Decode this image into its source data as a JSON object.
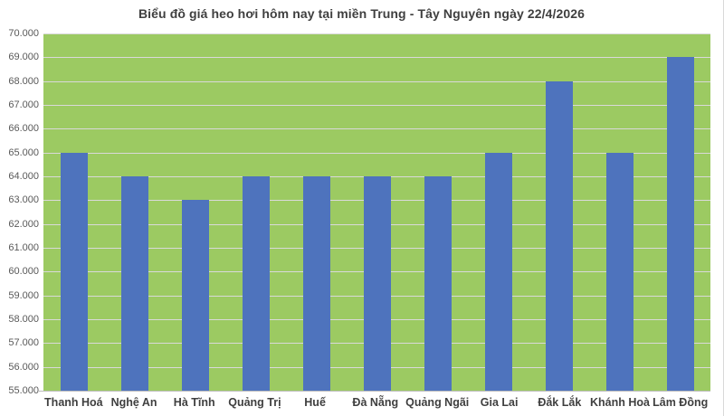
{
  "chart_data": {
    "type": "bar",
    "title": "Biểu đồ giá heo hơi hôm nay tại miền Trung - Tây Nguyên ngày 22/4/2026",
    "categories": [
      "Thanh Hoá",
      "Nghệ An",
      "Hà Tĩnh",
      "Quảng Trị",
      "Huế",
      "Đà Nẵng",
      "Quảng Ngãi",
      "Gia Lai",
      "Đắk Lắk",
      "Khánh Hoà",
      "Lâm Đồng"
    ],
    "values": [
      65000,
      64000,
      63000,
      64000,
      64000,
      64000,
      64000,
      65000,
      68000,
      65000,
      69000
    ],
    "y_ticks": [
      "55.000",
      "56.000",
      "57.000",
      "58.000",
      "59.000",
      "60.000",
      "61.000",
      "62.000",
      "63.000",
      "64.000",
      "65.000",
      "66.000",
      "67.000",
      "68.000",
      "69.000",
      "70.000"
    ],
    "ylim": [
      55000,
      70000
    ],
    "y_step": 1000,
    "xlabel": "",
    "ylabel": "",
    "grid": true,
    "legend_position": "none",
    "colors": {
      "bar": "#4E73BD",
      "plot_background": "#9CCA62",
      "gridline": "#D9D9D9",
      "title_text": "#3F3F3F",
      "axis_text": "#595959",
      "category_text": "#3F3F3F"
    }
  }
}
